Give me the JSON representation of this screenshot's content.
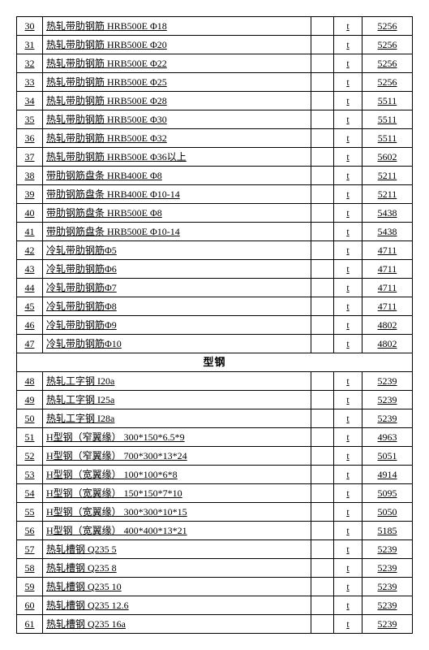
{
  "section_title": "型钢",
  "rows_a": [
    {
      "n": "30",
      "d": "热轧带肋钢筋 HRB500E Φ18",
      "u": "t",
      "p": "5256"
    },
    {
      "n": "31",
      "d": "热轧带肋钢筋 HRB500E Φ20",
      "u": "t",
      "p": "5256"
    },
    {
      "n": "32",
      "d": "热轧带肋钢筋 HRB500E Φ22",
      "u": "t",
      "p": "5256"
    },
    {
      "n": "33",
      "d": "热轧带肋钢筋 HRB500E Φ25",
      "u": "t",
      "p": "5256"
    },
    {
      "n": "34",
      "d": "热轧带肋钢筋 HRB500E Φ28",
      "u": "t",
      "p": "5511"
    },
    {
      "n": "35",
      "d": "热轧带肋钢筋 HRB500E Φ30",
      "u": "t",
      "p": "5511"
    },
    {
      "n": "36",
      "d": "热轧带肋钢筋 HRB500E Φ32",
      "u": "t",
      "p": "5511"
    },
    {
      "n": "37",
      "d": "热轧带肋钢筋 HRB500E Φ36以上",
      "u": "t",
      "p": "5602"
    },
    {
      "n": "38",
      "d": "带肋钢筋盘条 HRB400E Φ8",
      "u": "t",
      "p": "5211"
    },
    {
      "n": "39",
      "d": "带肋钢筋盘条 HRB400E Φ10-14",
      "u": "t",
      "p": "5211"
    },
    {
      "n": "40",
      "d": "带肋钢筋盘条 HRB500E Φ8",
      "u": "t",
      "p": "5438"
    },
    {
      "n": "41",
      "d": "带肋钢筋盘条 HRB500E Φ10-14",
      "u": "t",
      "p": "5438"
    },
    {
      "n": "42",
      "d": "冷轧带肋钢筋Φ5",
      "u": "t",
      "p": "4711"
    },
    {
      "n": "43",
      "d": "冷轧带肋钢筋Φ6",
      "u": "t",
      "p": "4711"
    },
    {
      "n": "44",
      "d": "冷轧带肋钢筋Φ7",
      "u": "t",
      "p": "4711"
    },
    {
      "n": "45",
      "d": "冷轧带肋钢筋Φ8",
      "u": "t",
      "p": "4711"
    },
    {
      "n": "46",
      "d": "冷轧带肋钢筋Φ9",
      "u": "t",
      "p": "4802"
    },
    {
      "n": "47",
      "d": "冷轧带肋钢筋Φ10",
      "u": "t",
      "p": "4802"
    }
  ],
  "rows_b": [
    {
      "n": "48",
      "d": "热轧工字钢 I20a",
      "u": "t",
      "p": "5239"
    },
    {
      "n": "49",
      "d": "热轧工字钢 I25a",
      "u": "t",
      "p": "5239"
    },
    {
      "n": "50",
      "d": "热轧工字钢 I28a",
      "u": "t",
      "p": "5239"
    },
    {
      "n": "51",
      "d": "H型钢（窄翼缘） 300*150*6.5*9",
      "u": "t",
      "p": "4963"
    },
    {
      "n": "52",
      "d": "H型钢（窄翼缘） 700*300*13*24",
      "u": "t",
      "p": "5051"
    },
    {
      "n": "53",
      "d": "H型钢（宽翼缘） 100*100*6*8",
      "u": "t",
      "p": "4914"
    },
    {
      "n": "54",
      "d": "H型钢（宽翼缘） 150*150*7*10",
      "u": "t",
      "p": "5095"
    },
    {
      "n": "55",
      "d": "H型钢（宽翼缘） 300*300*10*15",
      "u": "t",
      "p": "5050"
    },
    {
      "n": "56",
      "d": "H型钢（宽翼缘） 400*400*13*21",
      "u": "t",
      "p": "5185"
    },
    {
      "n": "57",
      "d": "热轧槽钢 Q235 5",
      "u": "t",
      "p": "5239"
    },
    {
      "n": "58",
      "d": "热轧槽钢 Q235 8",
      "u": "t",
      "p": "5239"
    },
    {
      "n": "59",
      "d": "热轧槽钢 Q235 10",
      "u": "t",
      "p": "5239"
    },
    {
      "n": "60",
      "d": "热轧槽钢 Q235 12.6",
      "u": "t",
      "p": "5239"
    },
    {
      "n": "61",
      "d": "热轧槽钢 Q235 16a",
      "u": "t",
      "p": "5239"
    }
  ]
}
